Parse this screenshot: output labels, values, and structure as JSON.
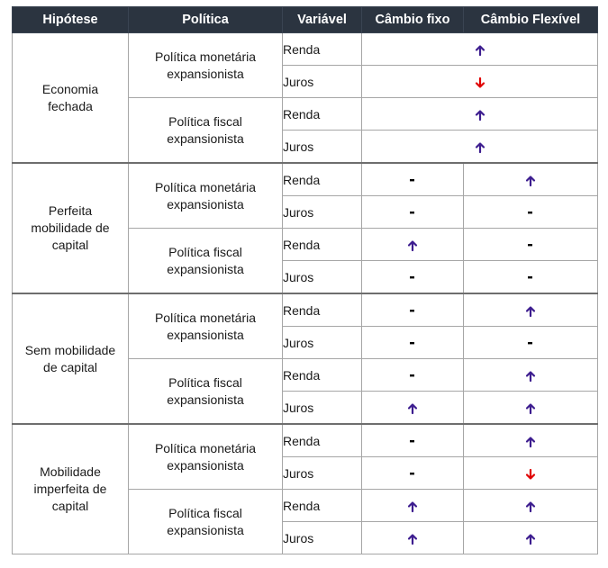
{
  "headers": [
    "Hipótese",
    "Política",
    "Variável",
    "Câmbio fixo",
    "Câmbio Flexível"
  ],
  "colors": {
    "up": "#3d1d8f",
    "down": "#e00000",
    "flat": "#000000",
    "header_bg": "#2b3440"
  },
  "groups": [
    {
      "hypothesis": [
        "Economia",
        "fechada"
      ],
      "merged": true,
      "policies": [
        {
          "name": [
            "Política monetária",
            "expansionista"
          ],
          "rows": [
            {
              "var": "Renda",
              "both": "up"
            },
            {
              "var": "Juros",
              "both": "down"
            }
          ]
        },
        {
          "name": [
            "Política fiscal",
            "expansionista"
          ],
          "rows": [
            {
              "var": "Renda",
              "both": "up"
            },
            {
              "var": "Juros",
              "both": "up"
            }
          ]
        }
      ]
    },
    {
      "hypothesis": [
        "Perfeita",
        "mobilidade de",
        "capital"
      ],
      "merged": false,
      "policies": [
        {
          "name": [
            "Política monetária",
            "expansionista"
          ],
          "rows": [
            {
              "var": "Renda",
              "fixo": "flat",
              "flex": "up"
            },
            {
              "var": "Juros",
              "fixo": "flat",
              "flex": "flat"
            }
          ]
        },
        {
          "name": [
            "Política fiscal",
            "expansionista"
          ],
          "rows": [
            {
              "var": "Renda",
              "fixo": "up",
              "flex": "flat"
            },
            {
              "var": "Juros",
              "fixo": "flat",
              "flex": "flat"
            }
          ]
        }
      ]
    },
    {
      "hypothesis": [
        "Sem mobilidade",
        "de capital"
      ],
      "merged": false,
      "policies": [
        {
          "name": [
            "Política monetária",
            "expansionista"
          ],
          "rows": [
            {
              "var": "Renda",
              "fixo": "flat",
              "flex": "up"
            },
            {
              "var": "Juros",
              "fixo": "flat",
              "flex": "flat"
            }
          ]
        },
        {
          "name": [
            "Política fiscal",
            "expansionista"
          ],
          "rows": [
            {
              "var": "Renda",
              "fixo": "flat",
              "flex": "up"
            },
            {
              "var": "Juros",
              "fixo": "up",
              "flex": "up"
            }
          ]
        }
      ]
    },
    {
      "hypothesis": [
        "Mobilidade",
        "imperfeita de",
        "capital"
      ],
      "merged": false,
      "policies": [
        {
          "name": [
            "Política monetária",
            "expansionista"
          ],
          "rows": [
            {
              "var": "Renda",
              "fixo": "flat",
              "flex": "up"
            },
            {
              "var": "Juros",
              "fixo": "flat",
              "flex": "down"
            }
          ]
        },
        {
          "name": [
            "Política fiscal",
            "expansionista"
          ],
          "rows": [
            {
              "var": "Renda",
              "fixo": "up",
              "flex": "up"
            },
            {
              "var": "Juros",
              "fixo": "up",
              "flex": "up"
            }
          ]
        }
      ]
    }
  ]
}
